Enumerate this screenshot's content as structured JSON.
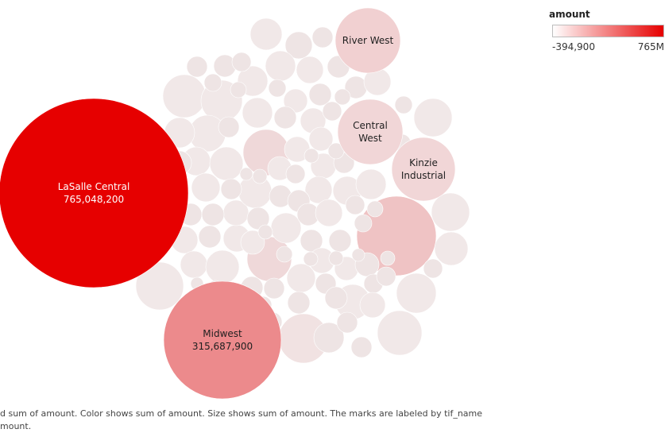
{
  "chart_data": {
    "type": "packed-bubble",
    "legend": {
      "title": "amount",
      "min_label": "-394,900",
      "max_label": "765M",
      "min_color": "#ffffff",
      "max_color": "#e60000"
    },
    "caption_lines": [
      "d sum of amount.  Color shows sum of amount.  Size shows sum of amount.  The marks are labeled by tif_name",
      "mount."
    ],
    "labeled_bubbles": [
      {
        "name": "LaSalle Central",
        "value_label": "765,048,200",
        "value": 765048200
      },
      {
        "name": "Midwest",
        "value_label": "315,687,900",
        "value": 315687900
      },
      {
        "name": "River West",
        "value_label": ""
      },
      {
        "name": "Central West",
        "value_label": ""
      },
      {
        "name": "Kinzie Industrial",
        "value_label": ""
      }
    ],
    "unlabeled_bubble_count": 106
  }
}
